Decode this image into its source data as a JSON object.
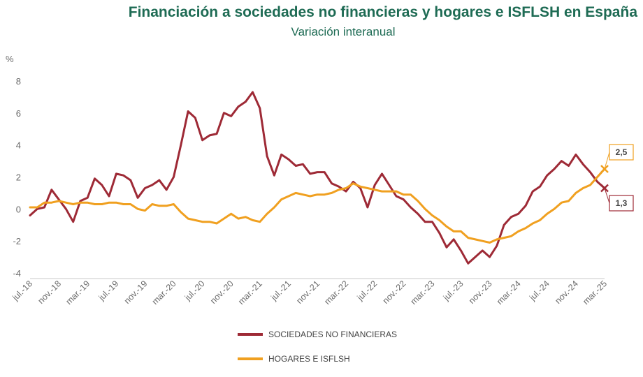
{
  "title": "Financiación a sociedades no financieras y hogares e ISFLSH en España",
  "subtitle": "Variación interanual",
  "colors": {
    "series1": "#9e2a36",
    "series2": "#f0a020",
    "title": "#1e6b54"
  },
  "chart_data": {
    "type": "line",
    "unit_label": "%",
    "ylim": [
      -4,
      8
    ],
    "yticks": [
      -4,
      -2,
      0,
      2,
      4,
      6,
      8
    ],
    "grid": false,
    "legend_position": "bottom",
    "x_tick_labels": [
      "jul.-18",
      "nov.-18",
      "mar.-19",
      "jul.-19",
      "nov.-19",
      "mar.-20",
      "jul.-20",
      "nov.-20",
      "mar.-21",
      "jul.-21",
      "nov.-21",
      "mar.-22",
      "jul.-22",
      "nov.-22",
      "mar.-23",
      "jul.-23",
      "nov.-23",
      "mar.-24",
      "jul.-24",
      "nov.-24",
      "mar.-25"
    ],
    "x": [
      "jul.-18",
      "ago.-18",
      "sep.-18",
      "oct.-18",
      "nov.-18",
      "dic.-18",
      "ene.-19",
      "feb.-19",
      "mar.-19",
      "abr.-19",
      "may.-19",
      "jun.-19",
      "jul.-19",
      "ago.-19",
      "sep.-19",
      "oct.-19",
      "nov.-19",
      "dic.-19",
      "ene.-20",
      "feb.-20",
      "mar.-20",
      "abr.-20",
      "may.-20",
      "jun.-20",
      "jul.-20",
      "ago.-20",
      "sep.-20",
      "oct.-20",
      "nov.-20",
      "dic.-20",
      "ene.-21",
      "feb.-21",
      "mar.-21",
      "abr.-21",
      "may.-21",
      "jun.-21",
      "jul.-21",
      "ago.-21",
      "sep.-21",
      "oct.-21",
      "nov.-21",
      "dic.-21",
      "ene.-22",
      "feb.-22",
      "mar.-22",
      "abr.-22",
      "may.-22",
      "jun.-22",
      "jul.-22",
      "ago.-22",
      "sep.-22",
      "oct.-22",
      "nov.-22",
      "dic.-22",
      "ene.-23",
      "feb.-23",
      "mar.-23",
      "abr.-23",
      "may.-23",
      "jun.-23",
      "jul.-23",
      "ago.-23",
      "sep.-23",
      "oct.-23",
      "nov.-23",
      "dic.-23",
      "ene.-24",
      "feb.-24",
      "mar.-24",
      "abr.-24",
      "may.-24",
      "jun.-24",
      "jul.-24",
      "ago.-24",
      "sep.-24",
      "oct.-24",
      "nov.-24",
      "dic.-24",
      "ene.-25",
      "feb.-25",
      "mar.-25"
    ],
    "series": [
      {
        "name": "SOCIEDADES NO FINANCIERAS",
        "values": [
          -0.4,
          0.0,
          0.1,
          1.2,
          0.6,
          0.0,
          -0.8,
          0.5,
          0.7,
          1.9,
          1.5,
          0.8,
          2.2,
          2.1,
          1.8,
          0.7,
          1.3,
          1.5,
          1.8,
          1.2,
          2.0,
          4.0,
          6.1,
          5.7,
          4.3,
          4.6,
          4.7,
          6.0,
          5.8,
          6.4,
          6.7,
          7.3,
          6.3,
          3.3,
          2.1,
          3.4,
          3.1,
          2.7,
          2.8,
          2.2,
          2.3,
          2.3,
          1.6,
          1.4,
          1.1,
          1.7,
          1.3,
          0.1,
          1.5,
          2.2,
          1.5,
          0.8,
          0.6,
          0.1,
          -0.3,
          -0.8,
          -0.8,
          -1.5,
          -2.4,
          -1.9,
          -2.6,
          -3.4,
          -3.0,
          -2.6,
          -3.0,
          -2.3,
          -1.0,
          -0.5,
          -0.3,
          0.2,
          1.1,
          1.4,
          2.1,
          2.5,
          3.0,
          2.7,
          3.4,
          2.8,
          2.3,
          1.7,
          1.3
        ],
        "end_label": "1,3"
      },
      {
        "name": "HOGARES E ISFLSH",
        "values": [
          0.1,
          0.1,
          0.4,
          0.4,
          0.5,
          0.4,
          0.3,
          0.4,
          0.4,
          0.3,
          0.3,
          0.4,
          0.4,
          0.3,
          0.3,
          0.0,
          -0.1,
          0.3,
          0.2,
          0.2,
          0.3,
          -0.2,
          -0.6,
          -0.7,
          -0.8,
          -0.8,
          -0.9,
          -0.6,
          -0.3,
          -0.6,
          -0.5,
          -0.7,
          -0.8,
          -0.3,
          0.1,
          0.6,
          0.8,
          1.0,
          0.9,
          0.8,
          0.9,
          0.9,
          1.0,
          1.2,
          1.3,
          1.6,
          1.4,
          1.3,
          1.2,
          1.1,
          1.1,
          1.1,
          0.9,
          0.9,
          0.5,
          0.0,
          -0.4,
          -0.7,
          -1.1,
          -1.4,
          -1.4,
          -1.8,
          -1.9,
          -2.0,
          -2.1,
          -1.9,
          -1.8,
          -1.7,
          -1.4,
          -1.2,
          -0.9,
          -0.7,
          -0.3,
          0.0,
          0.4,
          0.5,
          1.0,
          1.3,
          1.5,
          2.0,
          2.5
        ],
        "end_label": "2,5"
      }
    ]
  }
}
